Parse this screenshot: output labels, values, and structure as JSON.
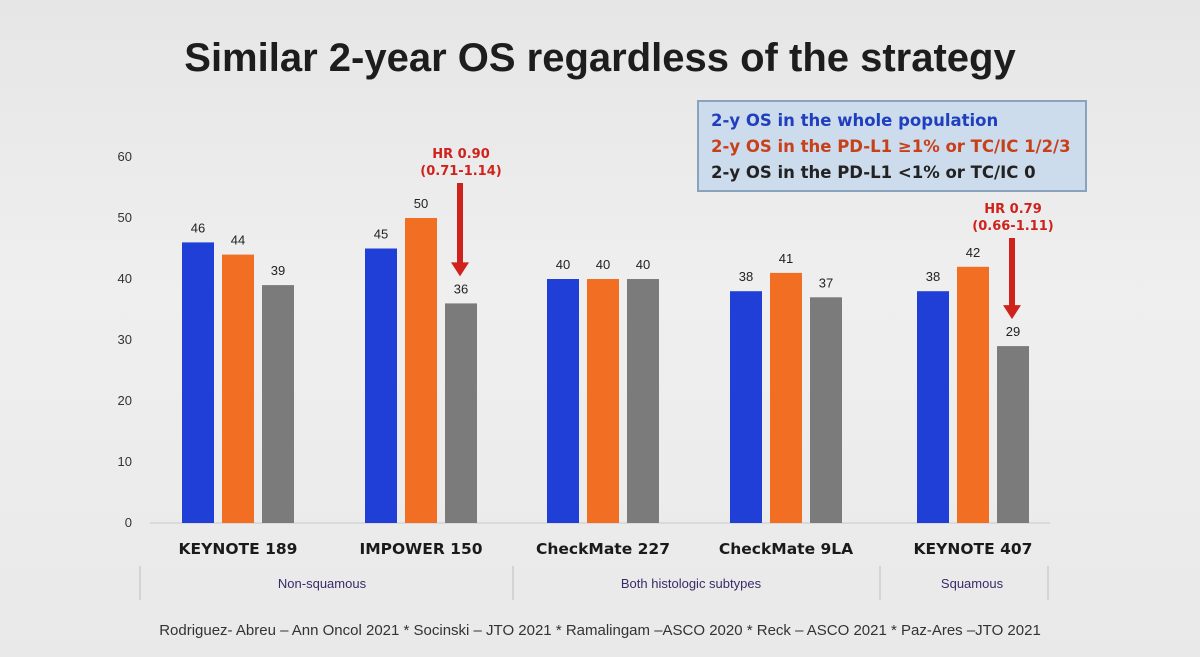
{
  "title": "Similar 2-year OS regardless of the strategy",
  "legend": [
    {
      "label": "2-y OS in the whole population",
      "color": "#1f3fbf"
    },
    {
      "label": "2-y OS in the PD-L1 ≥1% or TC/IC 1/2/3",
      "color": "#c8401a"
    },
    {
      "label": "2-y OS in the PD-L1 <1% or TC/IC 0",
      "color": "#222222"
    }
  ],
  "chart_data": {
    "type": "bar",
    "categories": [
      "KEYNOTE 189",
      "IMPOWER 150",
      "CheckMate 227",
      "CheckMate 9LA",
      "KEYNOTE 407"
    ],
    "series": [
      {
        "values": [
          46,
          45,
          40,
          38,
          38
        ],
        "color": "#1f3fd6"
      },
      {
        "values": [
          44,
          50,
          40,
          41,
          42
        ],
        "color": "#f26e22"
      },
      {
        "values": [
          39,
          36,
          40,
          37,
          29
        ],
        "color": "#7b7b7b"
      }
    ],
    "data_labels": [
      [
        "46",
        "44",
        "39"
      ],
      [
        "45",
        "50",
        "36"
      ],
      [
        "40",
        "40",
        "40"
      ],
      [
        "38",
        "41",
        "37"
      ],
      [
        "38",
        "42",
        "29"
      ]
    ],
    "ylim": [
      0,
      60
    ],
    "yticks": [
      "0",
      "10",
      "20",
      "30",
      "40",
      "50",
      "60"
    ],
    "ytick_values": [
      0,
      10,
      20,
      30,
      40,
      50,
      60
    ],
    "groups": [
      {
        "label": "Non-squamous",
        "categories": [
          0,
          1
        ]
      },
      {
        "label": "Both histologic subtypes",
        "categories": [
          2,
          3
        ]
      },
      {
        "label": "Squamous",
        "categories": [
          4
        ]
      }
    ],
    "annotations": [
      {
        "category": 1,
        "series": 2,
        "lines": [
          "HR 0.90",
          "(0.71-1.14)"
        ],
        "color": "#d0221c"
      },
      {
        "category": 4,
        "series": 2,
        "lines": [
          "HR 0.79",
          "(0.66-1.11)"
        ],
        "color": "#d0221c"
      }
    ]
  },
  "footer": "Rodriguez- Abreu – Ann Oncol 2021 * Socinski – JTO 2021 * Ramalingam –ASCO 2020 * Reck – ASCO 2021 * Paz-Ares –JTO 2021"
}
